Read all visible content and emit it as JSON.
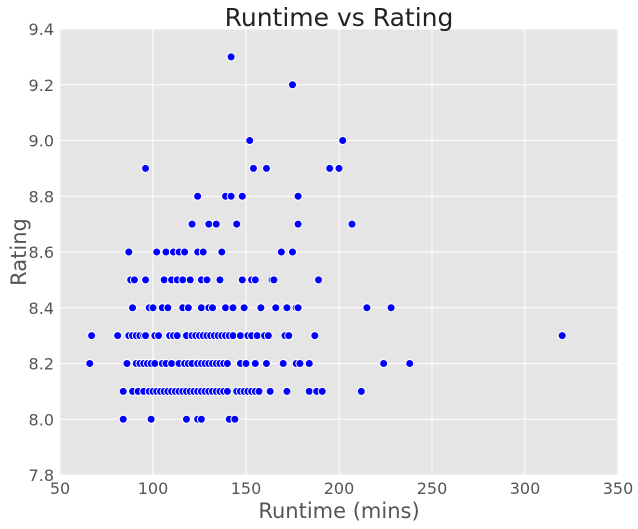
{
  "chart_data": {
    "type": "scatter",
    "title": "Runtime vs Rating",
    "xlabel": "Runtime (mins)",
    "ylabel": "Rating",
    "xlim": [
      50,
      350
    ],
    "ylim": [
      7.8,
      9.4
    ],
    "xticks": [
      "50",
      "100",
      "150",
      "200",
      "250",
      "300",
      "350"
    ],
    "yticks": [
      "7.8",
      "8.0",
      "8.2",
      "8.4",
      "8.6",
      "8.8",
      "9.0",
      "9.2",
      "9.4"
    ],
    "xtick_values": [
      50,
      100,
      150,
      200,
      250,
      300,
      350
    ],
    "ytick_values": [
      7.8,
      8.0,
      8.2,
      8.4,
      8.6,
      8.8,
      9.0,
      9.2,
      9.4
    ],
    "grid": true,
    "colors": {
      "background": "#e5e5e5",
      "grid": "#ffffff",
      "point": "#0000ff",
      "point_edge": "#ffffff"
    },
    "points": [
      [
        142,
        9.3
      ],
      [
        175,
        9.2
      ],
      [
        152,
        9.0
      ],
      [
        202,
        9.0
      ],
      [
        195,
        8.9
      ],
      [
        200,
        8.9
      ],
      [
        96,
        8.9
      ],
      [
        154,
        8.9
      ],
      [
        161,
        8.9
      ],
      [
        124,
        8.8
      ],
      [
        139,
        8.8
      ],
      [
        142,
        8.8
      ],
      [
        148,
        8.8
      ],
      [
        178,
        8.8
      ],
      [
        121,
        8.7
      ],
      [
        130,
        8.7
      ],
      [
        134,
        8.7
      ],
      [
        145,
        8.7
      ],
      [
        178,
        8.7
      ],
      [
        207,
        8.7
      ],
      [
        87,
        8.6
      ],
      [
        102,
        8.6
      ],
      [
        107,
        8.6
      ],
      [
        111,
        8.6
      ],
      [
        114,
        8.6
      ],
      [
        117,
        8.6
      ],
      [
        124,
        8.6
      ],
      [
        127,
        8.6
      ],
      [
        137,
        8.6
      ],
      [
        169,
        8.6
      ],
      [
        175,
        8.6
      ],
      [
        88,
        8.5
      ],
      [
        90,
        8.5
      ],
      [
        96,
        8.5
      ],
      [
        106,
        8.5
      ],
      [
        110,
        8.5
      ],
      [
        113,
        8.5
      ],
      [
        116,
        8.5
      ],
      [
        120,
        8.5
      ],
      [
        126,
        8.5
      ],
      [
        129,
        8.5
      ],
      [
        136,
        8.5
      ],
      [
        148,
        8.5
      ],
      [
        153,
        8.5
      ],
      [
        155,
        8.5
      ],
      [
        164,
        8.5
      ],
      [
        165,
        8.5
      ],
      [
        189,
        8.5
      ],
      [
        89,
        8.4
      ],
      [
        98,
        8.4
      ],
      [
        100,
        8.4
      ],
      [
        105,
        8.4
      ],
      [
        108,
        8.4
      ],
      [
        116,
        8.4
      ],
      [
        119,
        8.4
      ],
      [
        126,
        8.4
      ],
      [
        130,
        8.4
      ],
      [
        132,
        8.4
      ],
      [
        139,
        8.4
      ],
      [
        143,
        8.4
      ],
      [
        149,
        8.4
      ],
      [
        158,
        8.4
      ],
      [
        166,
        8.4
      ],
      [
        172,
        8.4
      ],
      [
        177,
        8.4
      ],
      [
        178,
        8.4
      ],
      [
        215,
        8.4
      ],
      [
        228,
        8.4
      ],
      [
        67,
        8.3
      ],
      [
        81,
        8.3
      ],
      [
        87,
        8.3
      ],
      [
        89,
        8.3
      ],
      [
        91,
        8.3
      ],
      [
        93,
        8.3
      ],
      [
        95,
        8.3
      ],
      [
        96,
        8.3
      ],
      [
        101,
        8.3
      ],
      [
        103,
        8.3
      ],
      [
        109,
        8.3
      ],
      [
        111,
        8.3
      ],
      [
        113,
        8.3
      ],
      [
        118,
        8.3
      ],
      [
        121,
        8.3
      ],
      [
        123,
        8.3
      ],
      [
        125,
        8.3
      ],
      [
        127,
        8.3
      ],
      [
        129,
        8.3
      ],
      [
        131,
        8.3
      ],
      [
        133,
        8.3
      ],
      [
        135,
        8.3
      ],
      [
        137,
        8.3
      ],
      [
        139,
        8.3
      ],
      [
        141,
        8.3
      ],
      [
        143,
        8.3
      ],
      [
        147,
        8.3
      ],
      [
        151,
        8.3
      ],
      [
        153,
        8.3
      ],
      [
        156,
        8.3
      ],
      [
        160,
        8.3
      ],
      [
        162,
        8.3
      ],
      [
        171,
        8.3
      ],
      [
        173,
        8.3
      ],
      [
        187,
        8.3
      ],
      [
        320,
        8.3
      ],
      [
        66,
        8.2
      ],
      [
        86,
        8.2
      ],
      [
        91,
        8.2
      ],
      [
        93,
        8.2
      ],
      [
        95,
        8.2
      ],
      [
        97,
        8.2
      ],
      [
        99,
        8.2
      ],
      [
        101,
        8.2
      ],
      [
        105,
        8.2
      ],
      [
        107,
        8.2
      ],
      [
        110,
        8.2
      ],
      [
        114,
        8.2
      ],
      [
        117,
        8.2
      ],
      [
        119,
        8.2
      ],
      [
        121,
        8.2
      ],
      [
        124,
        8.2
      ],
      [
        126,
        8.2
      ],
      [
        128,
        8.2
      ],
      [
        130,
        8.2
      ],
      [
        132,
        8.2
      ],
      [
        134,
        8.2
      ],
      [
        136,
        8.2
      ],
      [
        138,
        8.2
      ],
      [
        140,
        8.2
      ],
      [
        147,
        8.2
      ],
      [
        150,
        8.2
      ],
      [
        155,
        8.2
      ],
      [
        161,
        8.2
      ],
      [
        170,
        8.2
      ],
      [
        177,
        8.2
      ],
      [
        179,
        8.2
      ],
      [
        184,
        8.2
      ],
      [
        224,
        8.2
      ],
      [
        238,
        8.2
      ],
      [
        84,
        8.1
      ],
      [
        89,
        8.1
      ],
      [
        92,
        8.1
      ],
      [
        95,
        8.1
      ],
      [
        98,
        8.1
      ],
      [
        100,
        8.1
      ],
      [
        102,
        8.1
      ],
      [
        104,
        8.1
      ],
      [
        106,
        8.1
      ],
      [
        108,
        8.1
      ],
      [
        110,
        8.1
      ],
      [
        112,
        8.1
      ],
      [
        114,
        8.1
      ],
      [
        116,
        8.1
      ],
      [
        118,
        8.1
      ],
      [
        120,
        8.1
      ],
      [
        122,
        8.1
      ],
      [
        124,
        8.1
      ],
      [
        126,
        8.1
      ],
      [
        128,
        8.1
      ],
      [
        130,
        8.1
      ],
      [
        132,
        8.1
      ],
      [
        134,
        8.1
      ],
      [
        136,
        8.1
      ],
      [
        138,
        8.1
      ],
      [
        140,
        8.1
      ],
      [
        145,
        8.1
      ],
      [
        147,
        8.1
      ],
      [
        149,
        8.1
      ],
      [
        151,
        8.1
      ],
      [
        153,
        8.1
      ],
      [
        155,
        8.1
      ],
      [
        157,
        8.1
      ],
      [
        163,
        8.1
      ],
      [
        172,
        8.1
      ],
      [
        184,
        8.1
      ],
      [
        188,
        8.1
      ],
      [
        191,
        8.1
      ],
      [
        212,
        8.1
      ],
      [
        84,
        8.0
      ],
      [
        99,
        8.0
      ],
      [
        118,
        8.0
      ],
      [
        124,
        8.0
      ],
      [
        126,
        8.0
      ],
      [
        141,
        8.0
      ],
      [
        144,
        8.0
      ]
    ]
  }
}
